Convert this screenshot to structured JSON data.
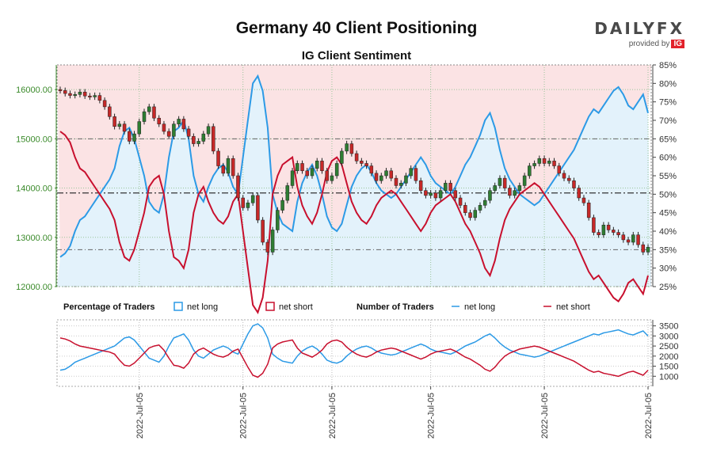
{
  "title": "Germany 40 Client Positioning",
  "subtitle": "IG Client Sentiment",
  "brand": {
    "name": "DAILYFX",
    "tagline": "provided by",
    "ig": "IG"
  },
  "colors": {
    "long": "#2c9ae6",
    "short": "#c8102e",
    "long_fill": "#e3f2fb",
    "short_fill": "#fbe3e4",
    "candle_up": "#2e7d32",
    "candle_down": "#c62828",
    "axis_green": "#3a8a2a"
  },
  "legend": {
    "pct_label": "Percentage of Traders",
    "pct_long": "net long",
    "pct_short": "net short",
    "num_label": "Number of Traders",
    "num_long": "net long",
    "num_short": "net short"
  },
  "x_ticks": [
    "2022-Jul-05",
    "2022-Jul-05",
    "2022-Jul-05",
    "2022-Jul-05",
    "2022-Jul-05",
    "2022-Jul-05"
  ],
  "chart_data": [
    {
      "type": "candlestick+line",
      "name": "price_and_sentiment",
      "price_axis": {
        "min": 12000,
        "max": 16500,
        "ticks": [
          "12000.00",
          "13000.00",
          "14000.00",
          "15000.00",
          "16000.00"
        ]
      },
      "pct_axis": {
        "min": 25,
        "max": 85,
        "ticks": [
          "25%",
          "30%",
          "35%",
          "40%",
          "45%",
          "50%",
          "55%",
          "60%",
          "65%",
          "70%",
          "75%",
          "80%",
          "85%"
        ]
      },
      "ref_lines": {
        "price": 13900,
        "pct_high": 65,
        "pct_low": 35
      },
      "close": [
        15980,
        15920,
        15880,
        15900,
        15950,
        15870,
        15850,
        15880,
        15780,
        15650,
        15450,
        15250,
        15300,
        15150,
        14950,
        15100,
        15350,
        15550,
        15650,
        15420,
        15300,
        15150,
        15050,
        15300,
        15400,
        15200,
        15050,
        14900,
        14950,
        15100,
        15250,
        14750,
        14450,
        14300,
        14600,
        14250,
        13800,
        13600,
        13700,
        13850,
        13350,
        12900,
        12700,
        13150,
        13550,
        13750,
        14050,
        14350,
        14500,
        14350,
        14250,
        14400,
        14550,
        14350,
        14150,
        14250,
        14500,
        14750,
        14900,
        14700,
        14550,
        14500,
        14450,
        14300,
        14150,
        14250,
        14350,
        14200,
        14050,
        14100,
        14250,
        14400,
        14150,
        13950,
        13850,
        13900,
        13800,
        13950,
        14100,
        13950,
        13800,
        13650,
        13500,
        13400,
        13550,
        13650,
        13750,
        13950,
        14050,
        14200,
        14000,
        13850,
        13950,
        14050,
        14250,
        14450,
        14500,
        14600,
        14500,
        14550,
        14450,
        14300,
        14200,
        14150,
        14000,
        13800,
        13700,
        13400,
        13100,
        13050,
        13250,
        13150,
        13100,
        13050,
        12950,
        12900,
        13050,
        12850,
        12700,
        12800
      ],
      "pct_long": [
        33,
        34,
        36,
        40,
        43,
        44,
        46,
        48,
        50,
        52,
        54,
        57,
        63,
        67,
        68,
        65,
        60,
        55,
        48,
        46,
        45,
        50,
        60,
        67,
        68,
        70,
        65,
        55,
        50,
        48,
        52,
        55,
        57,
        58,
        56,
        52,
        50,
        60,
        70,
        80,
        82,
        78,
        68,
        50,
        45,
        42,
        41,
        40,
        48,
        53,
        56,
        58,
        55,
        50,
        44,
        41,
        40,
        42,
        47,
        52,
        55,
        57,
        58,
        56,
        53,
        51,
        50,
        49,
        50,
        52,
        54,
        56,
        58,
        60,
        58,
        55,
        53,
        52,
        51,
        50,
        52,
        55,
        58,
        60,
        63,
        66,
        70,
        72,
        68,
        62,
        57,
        54,
        52,
        50,
        49,
        48,
        47,
        48,
        50,
        52,
        54,
        56,
        58,
        60,
        62,
        65,
        68,
        71,
        73,
        72,
        74,
        76,
        78,
        79,
        77,
        74,
        73,
        75,
        77,
        72
      ],
      "pct_short": [
        67,
        66,
        64,
        60,
        57,
        56,
        54,
        52,
        50,
        48,
        46,
        43,
        37,
        33,
        32,
        35,
        40,
        45,
        52,
        54,
        55,
        50,
        40,
        33,
        32,
        30,
        35,
        45,
        50,
        52,
        48,
        45,
        43,
        42,
        44,
        48,
        50,
        40,
        30,
        20,
        18,
        22,
        32,
        50,
        55,
        58,
        59,
        60,
        52,
        47,
        44,
        42,
        45,
        50,
        56,
        59,
        60,
        58,
        53,
        48,
        45,
        43,
        42,
        44,
        47,
        49,
        50,
        51,
        50,
        48,
        46,
        44,
        42,
        40,
        42,
        45,
        47,
        48,
        49,
        50,
        48,
        45,
        42,
        40,
        37,
        34,
        30,
        28,
        32,
        38,
        43,
        46,
        48,
        50,
        51,
        52,
        53,
        52,
        50,
        48,
        46,
        44,
        42,
        40,
        38,
        35,
        32,
        29,
        27,
        28,
        26,
        24,
        22,
        21,
        23,
        26,
        27,
        25,
        23,
        28
      ]
    },
    {
      "type": "line",
      "name": "number_of_traders",
      "y_axis": {
        "min": 500,
        "max": 3800,
        "ticks": [
          "1000",
          "1500",
          "2000",
          "2500",
          "3000",
          "3500"
        ]
      },
      "num_long": [
        1300,
        1350,
        1500,
        1700,
        1800,
        1900,
        2000,
        2100,
        2200,
        2300,
        2400,
        2500,
        2700,
        2900,
        2950,
        2800,
        2500,
        2200,
        1900,
        1800,
        1700,
        2000,
        2500,
        2900,
        3000,
        3100,
        2800,
        2300,
        2000,
        1900,
        2100,
        2300,
        2400,
        2500,
        2400,
        2200,
        2100,
        2600,
        3100,
        3500,
        3600,
        3400,
        2900,
        2100,
        1900,
        1750,
        1700,
        1650,
        2000,
        2250,
        2400,
        2500,
        2350,
        2100,
        1800,
        1700,
        1650,
        1750,
        2000,
        2200,
        2350,
        2450,
        2500,
        2400,
        2250,
        2150,
        2100,
        2050,
        2100,
        2200,
        2300,
        2400,
        2500,
        2600,
        2500,
        2350,
        2250,
        2200,
        2150,
        2100,
        2200,
        2350,
        2500,
        2600,
        2700,
        2850,
        3000,
        3100,
        2900,
        2650,
        2450,
        2300,
        2200,
        2100,
        2050,
        2000,
        1950,
        2000,
        2100,
        2200,
        2300,
        2400,
        2500,
        2600,
        2700,
        2800,
        2900,
        3000,
        3100,
        3050,
        3150,
        3200,
        3250,
        3300,
        3200,
        3100,
        3050,
        3150,
        3250,
        3000
      ],
      "num_short": [
        2900,
        2850,
        2750,
        2600,
        2500,
        2450,
        2400,
        2350,
        2300,
        2250,
        2200,
        2100,
        1800,
        1550,
        1500,
        1650,
        1900,
        2150,
        2400,
        2500,
        2550,
        2300,
        1900,
        1550,
        1500,
        1400,
        1650,
        2100,
        2300,
        2400,
        2250,
        2100,
        2000,
        1950,
        2050,
        2250,
        2350,
        1900,
        1450,
        1050,
        950,
        1150,
        1600,
        2400,
        2600,
        2700,
        2750,
        2800,
        2400,
        2150,
        2050,
        1950,
        2100,
        2300,
        2600,
        2750,
        2800,
        2700,
        2450,
        2250,
        2100,
        2000,
        1950,
        2050,
        2200,
        2300,
        2350,
        2400,
        2350,
        2250,
        2150,
        2050,
        1950,
        1850,
        1950,
        2100,
        2200,
        2250,
        2300,
        2350,
        2250,
        2100,
        1950,
        1850,
        1700,
        1550,
        1350,
        1250,
        1450,
        1750,
        2000,
        2150,
        2250,
        2350,
        2400,
        2450,
        2500,
        2450,
        2350,
        2250,
        2150,
        2050,
        1950,
        1850,
        1750,
        1600,
        1450,
        1300,
        1200,
        1250,
        1150,
        1100,
        1050,
        1000,
        1100,
        1200,
        1250,
        1150,
        1050,
        1300
      ]
    }
  ]
}
